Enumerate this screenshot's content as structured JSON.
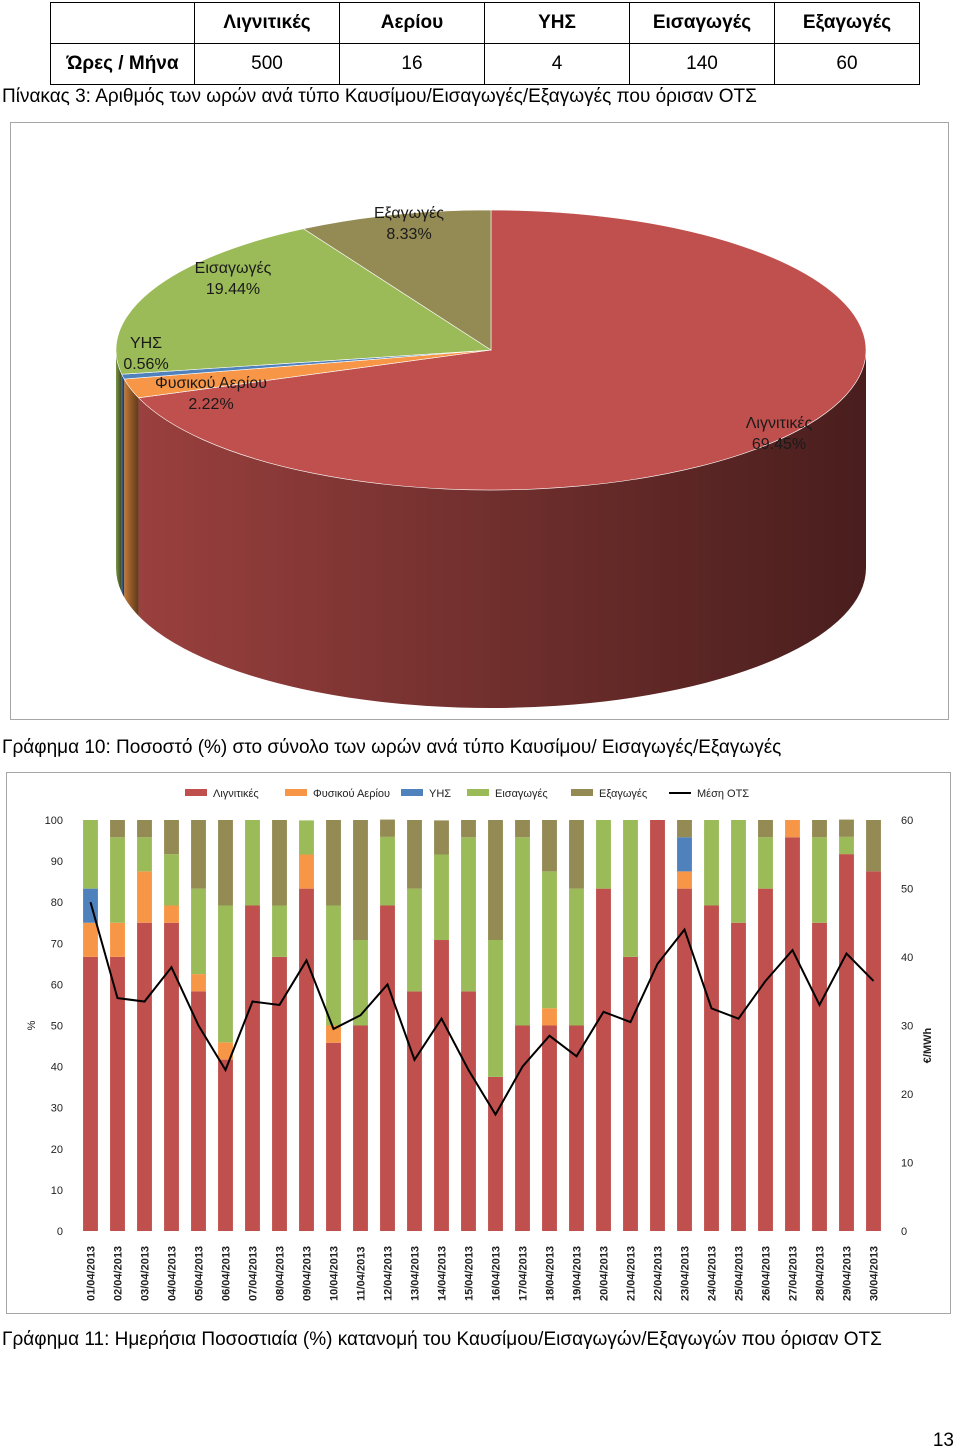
{
  "table": {
    "headers": [
      "Λιγνιτικές",
      "Αερίου",
      "ΥΗΣ",
      "Εισαγωγές",
      "Εξαγωγές"
    ],
    "row_label": "Ώρες / Μήνα",
    "values": [
      "500",
      "16",
      "4",
      "140",
      "60"
    ]
  },
  "table_caption": "Πίνακας 3: Αριθμός των ωρών ανά τύπο Καυσίμου/Εισαγωγές/Εξαγωγές που όρισαν ΟΤΣ",
  "pie_caption": "Γράφημα 10: Ποσοστό (%) στο σύνολο των ωρών ανά τύπο Καυσίμου/ Εισαγωγές/Εξαγωγές",
  "bar_caption": "Γράφημα 11: Ημερήσια Ποσοστιαία (%) κατανομή του Καυσίμου/Εισαγωγών/Εξαγωγών που όρισαν ΟΤΣ",
  "page_number": "13",
  "chart_data": [
    {
      "type": "pie",
      "title": "",
      "slices": [
        {
          "label": "Λιγνιτικές",
          "value": 69.45,
          "pct_label": "69.45%",
          "color": "#c0504d"
        },
        {
          "label": "Φυσικού Αερίου",
          "value": 2.22,
          "pct_label": "2.22%",
          "color": "#f79646"
        },
        {
          "label": "ΥΗΣ",
          "value": 0.56,
          "pct_label": "0.56%",
          "color": "#4f81bd"
        },
        {
          "label": "Εισαγωγές",
          "value": 19.44,
          "pct_label": "19.44%",
          "color": "#9bbb59"
        },
        {
          "label": "Εξαγωγές",
          "value": 8.33,
          "pct_label": "8.33%",
          "color": "#948a54"
        }
      ]
    },
    {
      "type": "bar",
      "stacked": true,
      "ylabel": "%",
      "y2label": "€/MWh",
      "ylim": [
        0,
        100
      ],
      "y2lim": [
        0,
        60
      ],
      "yticks": [
        "0",
        "10",
        "20",
        "30",
        "40",
        "50",
        "60",
        "70",
        "80",
        "90",
        "100"
      ],
      "y2ticks": [
        "0",
        "10",
        "20",
        "30",
        "40",
        "50",
        "60"
      ],
      "legend_position": "top",
      "categories": [
        "01/04/2013",
        "02/04/2013",
        "03/04/2013",
        "04/04/2013",
        "05/04/2013",
        "06/04/2013",
        "07/04/2013",
        "08/04/2013",
        "09/04/2013",
        "10/04/2013",
        "11/04/2013",
        "12/04/2013",
        "13/04/2013",
        "14/04/2013",
        "15/04/2013",
        "16/04/2013",
        "17/04/2013",
        "18/04/2013",
        "19/04/2013",
        "20/04/2013",
        "21/04/2013",
        "22/04/2013",
        "23/04/2013",
        "24/04/2013",
        "25/04/2013",
        "26/04/2013",
        "27/04/2013",
        "28/04/2013",
        "29/04/2013",
        "30/04/2013"
      ],
      "series": [
        {
          "name": "Λιγνιτικές",
          "color": "#c0504d",
          "values": [
            66.7,
            66.7,
            75,
            75,
            58.3,
            41.7,
            79.2,
            66.7,
            83.3,
            45.8,
            50,
            79.2,
            58.3,
            70.8,
            58.3,
            37.5,
            50,
            50,
            50,
            83.3,
            66.7,
            100,
            83.3,
            79.2,
            75,
            83.3,
            95.8,
            75,
            91.7,
            87.5
          ]
        },
        {
          "name": "Φυσικού Αερίου",
          "color": "#f79646",
          "values": [
            8.3,
            8.3,
            12.5,
            4.2,
            4.2,
            4.2,
            0,
            0,
            8.3,
            4.2,
            0,
            0,
            0,
            0,
            0,
            0,
            0,
            4.2,
            0,
            0,
            0,
            0,
            4.2,
            0,
            0,
            0,
            4.2,
            0,
            0,
            0
          ]
        },
        {
          "name": "ΥΗΣ",
          "color": "#4f81bd",
          "values": [
            8.3,
            0,
            0,
            0,
            0,
            0,
            0,
            0,
            0,
            0,
            0,
            0,
            0,
            0,
            0,
            0,
            0,
            0,
            0,
            0,
            0,
            0,
            8.3,
            0,
            0,
            0,
            0,
            0,
            0,
            0
          ]
        },
        {
          "name": "Εισαγωγές",
          "color": "#9bbb59",
          "values": [
            16.7,
            20.8,
            8.3,
            12.5,
            20.8,
            33.3,
            20.8,
            12.5,
            8.3,
            29.2,
            20.8,
            16.7,
            25,
            20.8,
            37.5,
            33.3,
            45.8,
            33.3,
            33.3,
            16.7,
            33.3,
            0,
            0,
            20.8,
            25,
            12.5,
            0,
            20.8,
            4.2,
            0
          ]
        },
        {
          "name": "Εξαγωγές",
          "color": "#948a54",
          "values": [
            0,
            4.2,
            4.2,
            8.3,
            16.7,
            20.8,
            0,
            20.8,
            0,
            20.8,
            29.2,
            4.2,
            16.7,
            8.3,
            4.2,
            29.2,
            4.2,
            12.5,
            16.7,
            0,
            0,
            0,
            4.2,
            0,
            0,
            4.2,
            0,
            4.2,
            4.2,
            12.5
          ]
        }
      ],
      "line": {
        "name": "Μέση ΟΤΣ",
        "color": "#000000",
        "axis": "right",
        "values": [
          48,
          34,
          33.5,
          38.5,
          30,
          23.5,
          33.5,
          33,
          39.5,
          29.5,
          31.5,
          36,
          25,
          31,
          23.5,
          17,
          24,
          28.5,
          25.5,
          32,
          30.5,
          39,
          44,
          32.5,
          31,
          36.5,
          41,
          33,
          40.5,
          36.5
        ]
      }
    }
  ]
}
